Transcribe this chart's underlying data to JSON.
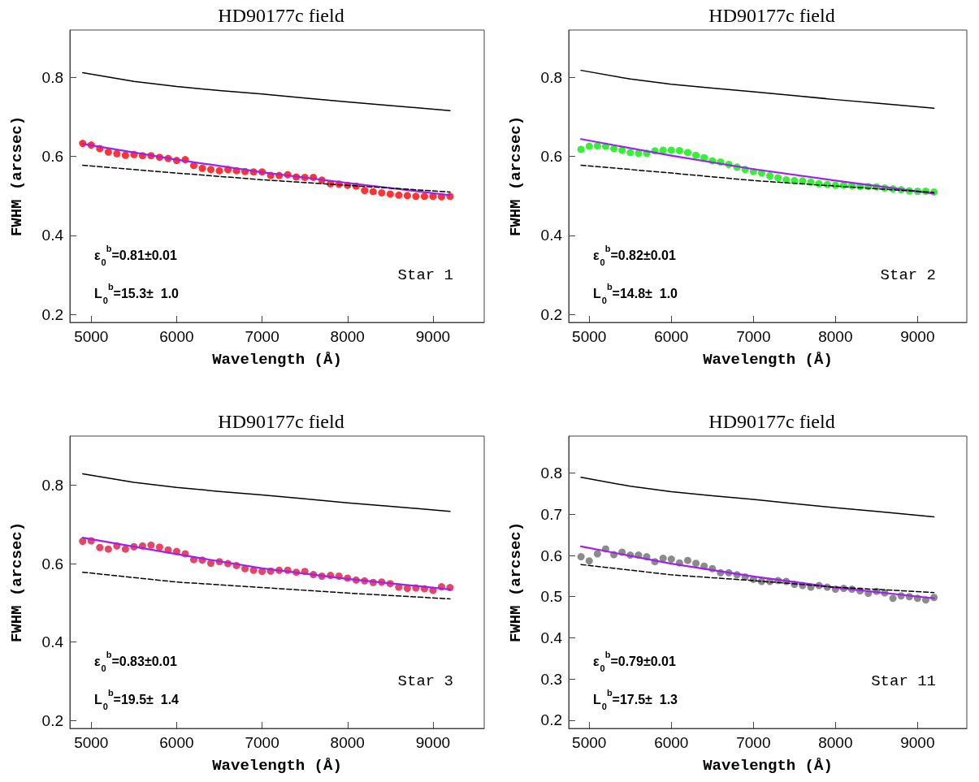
{
  "chart_data": [
    {
      "type": "scatter",
      "title": "HD90177c field",
      "xlabel": "Wavelength (Å)",
      "ylabel": "FWHM (arcsec)",
      "xlim": [
        4750,
        9600
      ],
      "ylim": [
        0.18,
        0.92
      ],
      "xticks": [
        5000,
        6000,
        7000,
        8000,
        9000
      ],
      "yticks": [
        0.2,
        0.4,
        0.6,
        0.8
      ],
      "annotations": [
        "ε$_{0}$$^{b}$=0.81±0.01",
        "L$_{0}$$^{b}$=15.3±  1.0",
        "Star 1"
      ],
      "series": [
        {
          "marker": "circle",
          "color": "#ff0000",
          "x": [
            4900,
            5000,
            5100,
            5200,
            5300,
            5400,
            5500,
            5600,
            5700,
            5800,
            5900,
            6000,
            6100,
            6200,
            6300,
            6400,
            6500,
            6600,
            6700,
            6800,
            6900,
            7000,
            7100,
            7200,
            7300,
            7400,
            7500,
            7600,
            7700,
            7800,
            7900,
            8000,
            8100,
            8200,
            8300,
            8400,
            8500,
            8600,
            8700,
            8800,
            8900,
            9000,
            9100,
            9200
          ],
          "values": [
            0.633,
            0.629,
            0.62,
            0.611,
            0.607,
            0.603,
            0.605,
            0.602,
            0.602,
            0.598,
            0.595,
            0.59,
            0.592,
            0.577,
            0.57,
            0.567,
            0.564,
            0.567,
            0.564,
            0.562,
            0.561,
            0.561,
            0.552,
            0.552,
            0.554,
            0.548,
            0.547,
            0.547,
            0.54,
            0.531,
            0.53,
            0.527,
            0.525,
            0.514,
            0.511,
            0.508,
            0.505,
            0.502,
            0.501,
            0.499,
            0.499,
            0.499,
            0.498,
            0.499
          ]
        },
        {
          "type": "line",
          "color": "#a020f0",
          "x": [
            4900,
            6000,
            7000,
            8000,
            9200
          ],
          "values": [
            0.632,
            0.592,
            0.56,
            0.533,
            0.502
          ]
        },
        {
          "type": "line",
          "color": "#000000",
          "x": [
            4900,
            5500,
            6000,
            6500,
            7000,
            7500,
            8000,
            8500,
            9200
          ],
          "values": [
            0.812,
            0.79,
            0.777,
            0.767,
            0.758,
            0.748,
            0.738,
            0.729,
            0.716
          ]
        },
        {
          "type": "line",
          "line_style": "dashed",
          "color": "#000000",
          "x": [
            4900,
            6000,
            7000,
            8000,
            9200
          ],
          "values": [
            0.578,
            0.558,
            0.541,
            0.527,
            0.51
          ]
        }
      ]
    },
    {
      "type": "scatter",
      "title": "HD90177c field",
      "xlabel": "Wavelength (Å)",
      "ylabel": "FWHM (arcsec)",
      "xlim": [
        4750,
        9600
      ],
      "ylim": [
        0.18,
        0.92
      ],
      "xticks": [
        5000,
        6000,
        7000,
        8000,
        9000
      ],
      "yticks": [
        0.2,
        0.4,
        0.6,
        0.8
      ],
      "annotations": [
        "ε$_{0}$$^{b}$=0.82±0.01",
        "L$_{0}$$^{b}$=14.8±  1.0",
        "Star 2"
      ],
      "series": [
        {
          "marker": "circle",
          "color": "#00ee00",
          "x": [
            4900,
            5000,
            5100,
            5200,
            5300,
            5400,
            5500,
            5600,
            5700,
            5800,
            5900,
            6000,
            6100,
            6200,
            6300,
            6400,
            6500,
            6600,
            6700,
            6800,
            6900,
            7000,
            7100,
            7200,
            7300,
            7400,
            7500,
            7600,
            7700,
            7800,
            7900,
            8000,
            8100,
            8200,
            8300,
            8400,
            8500,
            8600,
            8700,
            8800,
            8900,
            9000,
            9100,
            9200
          ],
          "values": [
            0.618,
            0.626,
            0.627,
            0.626,
            0.62,
            0.616,
            0.61,
            0.608,
            0.608,
            0.614,
            0.616,
            0.616,
            0.615,
            0.61,
            0.603,
            0.597,
            0.589,
            0.586,
            0.58,
            0.573,
            0.567,
            0.562,
            0.558,
            0.551,
            0.546,
            0.541,
            0.539,
            0.538,
            0.535,
            0.531,
            0.529,
            0.527,
            0.527,
            0.526,
            0.524,
            0.524,
            0.523,
            0.52,
            0.518,
            0.516,
            0.513,
            0.512,
            0.512,
            0.51
          ]
        },
        {
          "type": "line",
          "color": "#a020f0",
          "x": [
            4900,
            6000,
            7000,
            8000,
            9200
          ],
          "values": [
            0.644,
            0.602,
            0.568,
            0.539,
            0.506
          ]
        },
        {
          "type": "line",
          "color": "#000000",
          "x": [
            4900,
            5500,
            6000,
            6500,
            7000,
            7500,
            8000,
            8500,
            9200
          ],
          "values": [
            0.818,
            0.796,
            0.783,
            0.773,
            0.764,
            0.754,
            0.744,
            0.735,
            0.722
          ]
        },
        {
          "type": "line",
          "line_style": "dashed",
          "color": "#000000",
          "x": [
            4900,
            6000,
            7000,
            8000,
            9200
          ],
          "values": [
            0.578,
            0.558,
            0.539,
            0.525,
            0.509
          ]
        }
      ]
    },
    {
      "type": "scatter",
      "title": "HD90177c field",
      "xlabel": "Wavelength (Å)",
      "ylabel": "FWHM (arcsec)",
      "xlim": [
        4750,
        9600
      ],
      "ylim": [
        0.18,
        0.925
      ],
      "xticks": [
        5000,
        6000,
        7000,
        8000,
        9000
      ],
      "yticks": [
        0.2,
        0.4,
        0.6,
        0.8
      ],
      "annotations": [
        "ε$_{0}$$^{b}$=0.83±0.01",
        "L$_{0}$$^{b}$=19.5±  1.4",
        "Star 3"
      ],
      "series": [
        {
          "marker": "circle",
          "color": "#e0183c",
          "x": [
            4900,
            5000,
            5100,
            5200,
            5300,
            5400,
            5500,
            5600,
            5700,
            5800,
            5900,
            6000,
            6100,
            6200,
            6300,
            6400,
            6500,
            6600,
            6700,
            6800,
            6900,
            7000,
            7100,
            7200,
            7300,
            7400,
            7500,
            7600,
            7700,
            7800,
            7900,
            8000,
            8100,
            8200,
            8300,
            8400,
            8500,
            8600,
            8700,
            8800,
            8900,
            9000,
            9100,
            9200
          ],
          "values": [
            0.657,
            0.658,
            0.641,
            0.637,
            0.645,
            0.637,
            0.643,
            0.645,
            0.647,
            0.642,
            0.635,
            0.631,
            0.625,
            0.61,
            0.609,
            0.601,
            0.605,
            0.6,
            0.595,
            0.587,
            0.583,
            0.58,
            0.581,
            0.583,
            0.583,
            0.578,
            0.58,
            0.572,
            0.568,
            0.57,
            0.568,
            0.563,
            0.558,
            0.556,
            0.552,
            0.553,
            0.549,
            0.54,
            0.537,
            0.538,
            0.536,
            0.532,
            0.541,
            0.539
          ]
        },
        {
          "type": "line",
          "color": "#a020f0",
          "x": [
            4900,
            6000,
            7000,
            8000,
            9200
          ],
          "values": [
            0.666,
            0.624,
            0.588,
            0.561,
            0.534
          ]
        },
        {
          "type": "line",
          "color": "#000000",
          "x": [
            4900,
            5500,
            6000,
            6500,
            7000,
            7500,
            8000,
            8500,
            9200
          ],
          "values": [
            0.829,
            0.807,
            0.794,
            0.784,
            0.775,
            0.765,
            0.755,
            0.746,
            0.733
          ]
        },
        {
          "type": "line",
          "line_style": "dashed",
          "color": "#000000",
          "x": [
            4900,
            6000,
            7000,
            8000,
            9200
          ],
          "values": [
            0.578,
            0.553,
            0.539,
            0.525,
            0.51
          ]
        }
      ]
    },
    {
      "type": "scatter",
      "title": "HD90177c field",
      "xlabel": "Wavelength (Å)",
      "ylabel": "FWHM (arcsec)",
      "xlim": [
        4750,
        9600
      ],
      "ylim": [
        0.18,
        0.89
      ],
      "xticks": [
        5000,
        6000,
        7000,
        8000,
        9000
      ],
      "yticks": [
        0.2,
        0.3,
        0.4,
        0.5,
        0.6,
        0.7,
        0.8
      ],
      "annotations": [
        "ε$_{0}$$^{b}$=0.79±0.01",
        "L$_{0}$$^{b}$=17.5±  1.3",
        "Star 11"
      ],
      "series": [
        {
          "marker": "circle",
          "color": "#6e6e6e",
          "x": [
            4900,
            5000,
            5100,
            5200,
            5300,
            5400,
            5500,
            5600,
            5700,
            5800,
            5900,
            6000,
            6100,
            6200,
            6300,
            6400,
            6500,
            6600,
            6700,
            6800,
            6900,
            7000,
            7100,
            7200,
            7300,
            7400,
            7500,
            7600,
            7700,
            7800,
            7900,
            8000,
            8100,
            8200,
            8300,
            8400,
            8500,
            8600,
            8700,
            8800,
            8900,
            9000,
            9100,
            9200
          ],
          "values": [
            0.597,
            0.587,
            0.604,
            0.616,
            0.602,
            0.608,
            0.601,
            0.601,
            0.597,
            0.585,
            0.593,
            0.591,
            0.582,
            0.588,
            0.581,
            0.574,
            0.568,
            0.558,
            0.558,
            0.553,
            0.548,
            0.542,
            0.537,
            0.537,
            0.539,
            0.537,
            0.53,
            0.527,
            0.523,
            0.527,
            0.523,
            0.518,
            0.52,
            0.518,
            0.514,
            0.508,
            0.513,
            0.509,
            0.496,
            0.502,
            0.5,
            0.496,
            0.492,
            0.498
          ]
        },
        {
          "type": "line",
          "color": "#a020f0",
          "x": [
            4900,
            6000,
            7000,
            8000,
            9200
          ],
          "values": [
            0.622,
            0.58,
            0.549,
            0.522,
            0.496
          ]
        },
        {
          "type": "line",
          "color": "#000000",
          "x": [
            4900,
            5500,
            6000,
            6500,
            7000,
            7500,
            8000,
            8500,
            9200
          ],
          "values": [
            0.79,
            0.768,
            0.755,
            0.745,
            0.736,
            0.726,
            0.716,
            0.707,
            0.694
          ]
        },
        {
          "type": "line",
          "line_style": "dashed",
          "color": "#000000",
          "x": [
            4900,
            6000,
            7000,
            8000,
            9200
          ],
          "values": [
            0.578,
            0.553,
            0.539,
            0.523,
            0.51
          ]
        }
      ]
    }
  ]
}
